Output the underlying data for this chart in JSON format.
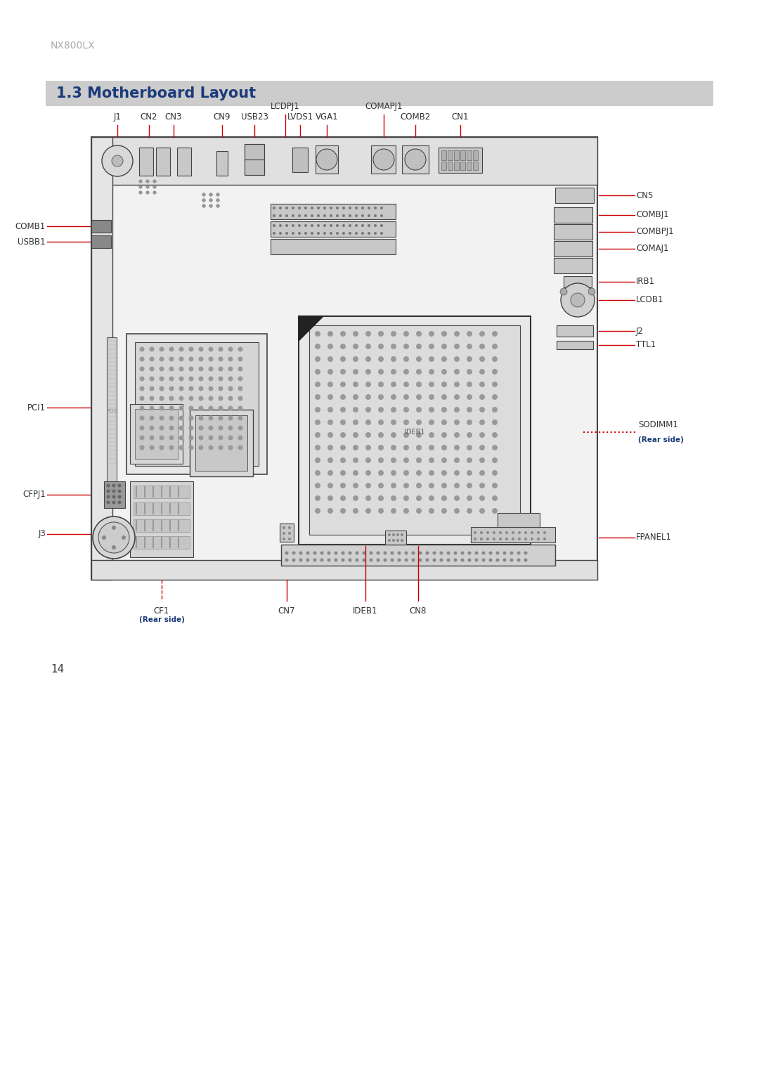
{
  "page_width": 10.8,
  "page_height": 15.27,
  "bg_color": "#ffffff",
  "header_text": "NX800LX",
  "header_color": "#999999",
  "header_fontsize": 10,
  "section_title": "1.3 Motherboard Layout",
  "section_title_color": "#1a3a7a",
  "section_title_fontsize": 15,
  "section_bar_color": "#cccccc",
  "board_color": "#f0f0f0",
  "board_edge_color": "#555555",
  "label_color": "#cc0000",
  "blue_label_color": "#1a3a7a",
  "dark_color": "#333333",
  "page_number": "14"
}
